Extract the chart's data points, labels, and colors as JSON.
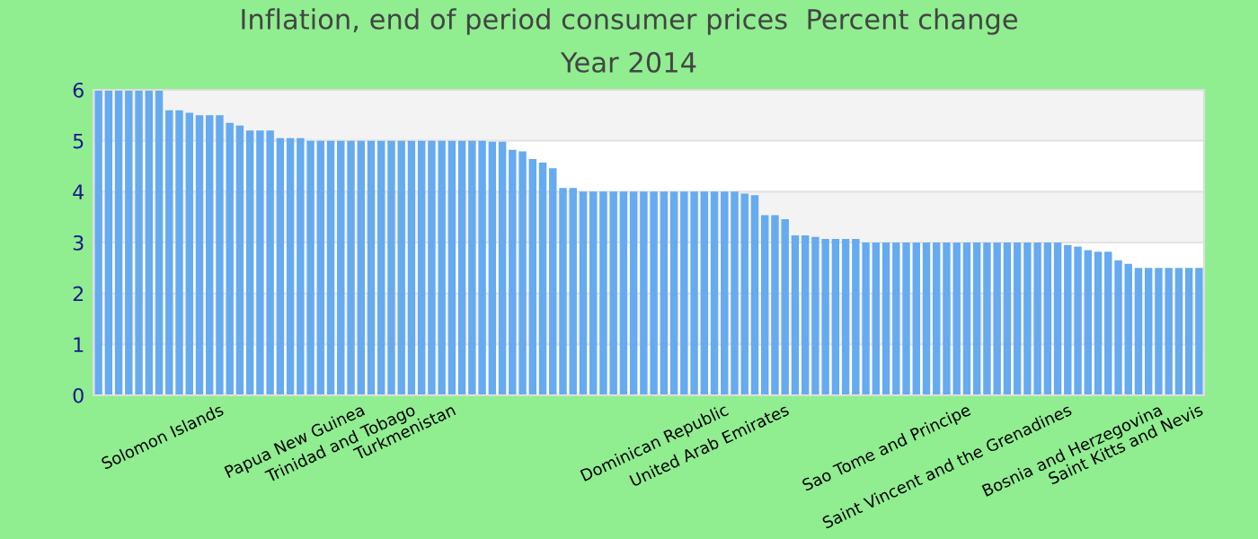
{
  "chart_data": {
    "type": "bar",
    "title": "Inflation, end of period consumer prices  Percent change",
    "subtitle": "Year 2014",
    "categories": [
      null,
      null,
      null,
      null,
      null,
      null,
      null,
      null,
      null,
      null,
      null,
      null,
      "Solomon Islands",
      null,
      null,
      null,
      null,
      null,
      null,
      null,
      null,
      null,
      null,
      null,
      null,
      null,
      "Papua New Guinea",
      null,
      null,
      null,
      null,
      "Trinidad and Tobago",
      null,
      null,
      null,
      "Turkmenistan",
      null,
      null,
      null,
      null,
      null,
      null,
      null,
      null,
      null,
      null,
      null,
      null,
      null,
      null,
      null,
      null,
      null,
      null,
      null,
      null,
      null,
      null,
      null,
      null,
      null,
      null,
      "Dominican Republic",
      null,
      null,
      null,
      null,
      null,
      "United Arab Emirates",
      null,
      null,
      null,
      null,
      null,
      null,
      null,
      null,
      null,
      null,
      null,
      null,
      null,
      null,
      null,
      null,
      null,
      "Sao Tome and Principe",
      null,
      null,
      null,
      null,
      null,
      null,
      null,
      null,
      null,
      "Saint Vincent and the Grenadines",
      null,
      null,
      null,
      null,
      null,
      null,
      null,
      null,
      "Bosnia and Herzegovina",
      null,
      null,
      null,
      "Saint Kitts and Nevis"
    ],
    "values": [
      6,
      6,
      6,
      6,
      6,
      6,
      6,
      5.6,
      5.6,
      5.55,
      5.5,
      5.5,
      5.5,
      5.35,
      5.3,
      5.2,
      5.2,
      5.2,
      5.05,
      5.05,
      5.05,
      5,
      5,
      5,
      5,
      5,
      5,
      5,
      5,
      5,
      5,
      5,
      5,
      5,
      5,
      5,
      5,
      5,
      5,
      4.98,
      4.98,
      4.82,
      4.79,
      4.64,
      4.57,
      4.46,
      4.07,
      4.07,
      4,
      4,
      4,
      4,
      4,
      4,
      4,
      4,
      4,
      4,
      4,
      4,
      4,
      4,
      4,
      4,
      3.96,
      3.93,
      3.54,
      3.54,
      3.46,
      3.14,
      3.14,
      3.11,
      3.07,
      3.07,
      3.07,
      3.07,
      3,
      3,
      3,
      3,
      3,
      3,
      3,
      3,
      3,
      3,
      3,
      3,
      3,
      3,
      3,
      3,
      3,
      3,
      3,
      3,
      2.95,
      2.92,
      2.85,
      2.82,
      2.82,
      2.65,
      2.58,
      2.5,
      2.5,
      2.5,
      2.5,
      2.5,
      2.5,
      2.5
    ],
    "color": "#66aaf0",
    "ylim": [
      0,
      6
    ],
    "yticks": [
      0,
      1,
      2,
      3,
      4,
      5,
      6
    ],
    "grid": "y"
  }
}
